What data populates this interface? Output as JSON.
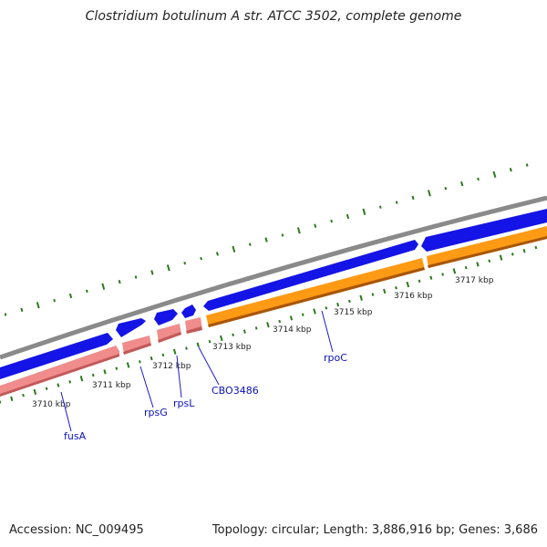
{
  "title": "Clostridium botulinum A str. ATCC 3502, complete genome",
  "footer": {
    "accession": "Accession: NC_009495",
    "summary": "Topology: circular; Length: 3,886,916 bp; Genes: 3,686"
  },
  "colors": {
    "backbone": "#8a8a8a",
    "gc_skew": "#2a7a1a",
    "cds_forward": "#1414e6",
    "cds_pink": "#f08c8c",
    "cds_pink_dark": "#c25a5a",
    "cds_orange": "#ff9a14",
    "cds_orange_dark": "#a8560a",
    "label_link": "#1a1ad0",
    "label_text": "#0a12b8"
  },
  "scale_ticks": [
    "3710 kbp",
    "3711 kbp",
    "3712 kbp",
    "3713 kbp",
    "3714 kbp",
    "3715 kbp",
    "3716 kbp",
    "3717 kbp"
  ],
  "genes": [
    "fusA",
    "rpsG",
    "rpsL",
    "CBO3486",
    "rpoC"
  ]
}
